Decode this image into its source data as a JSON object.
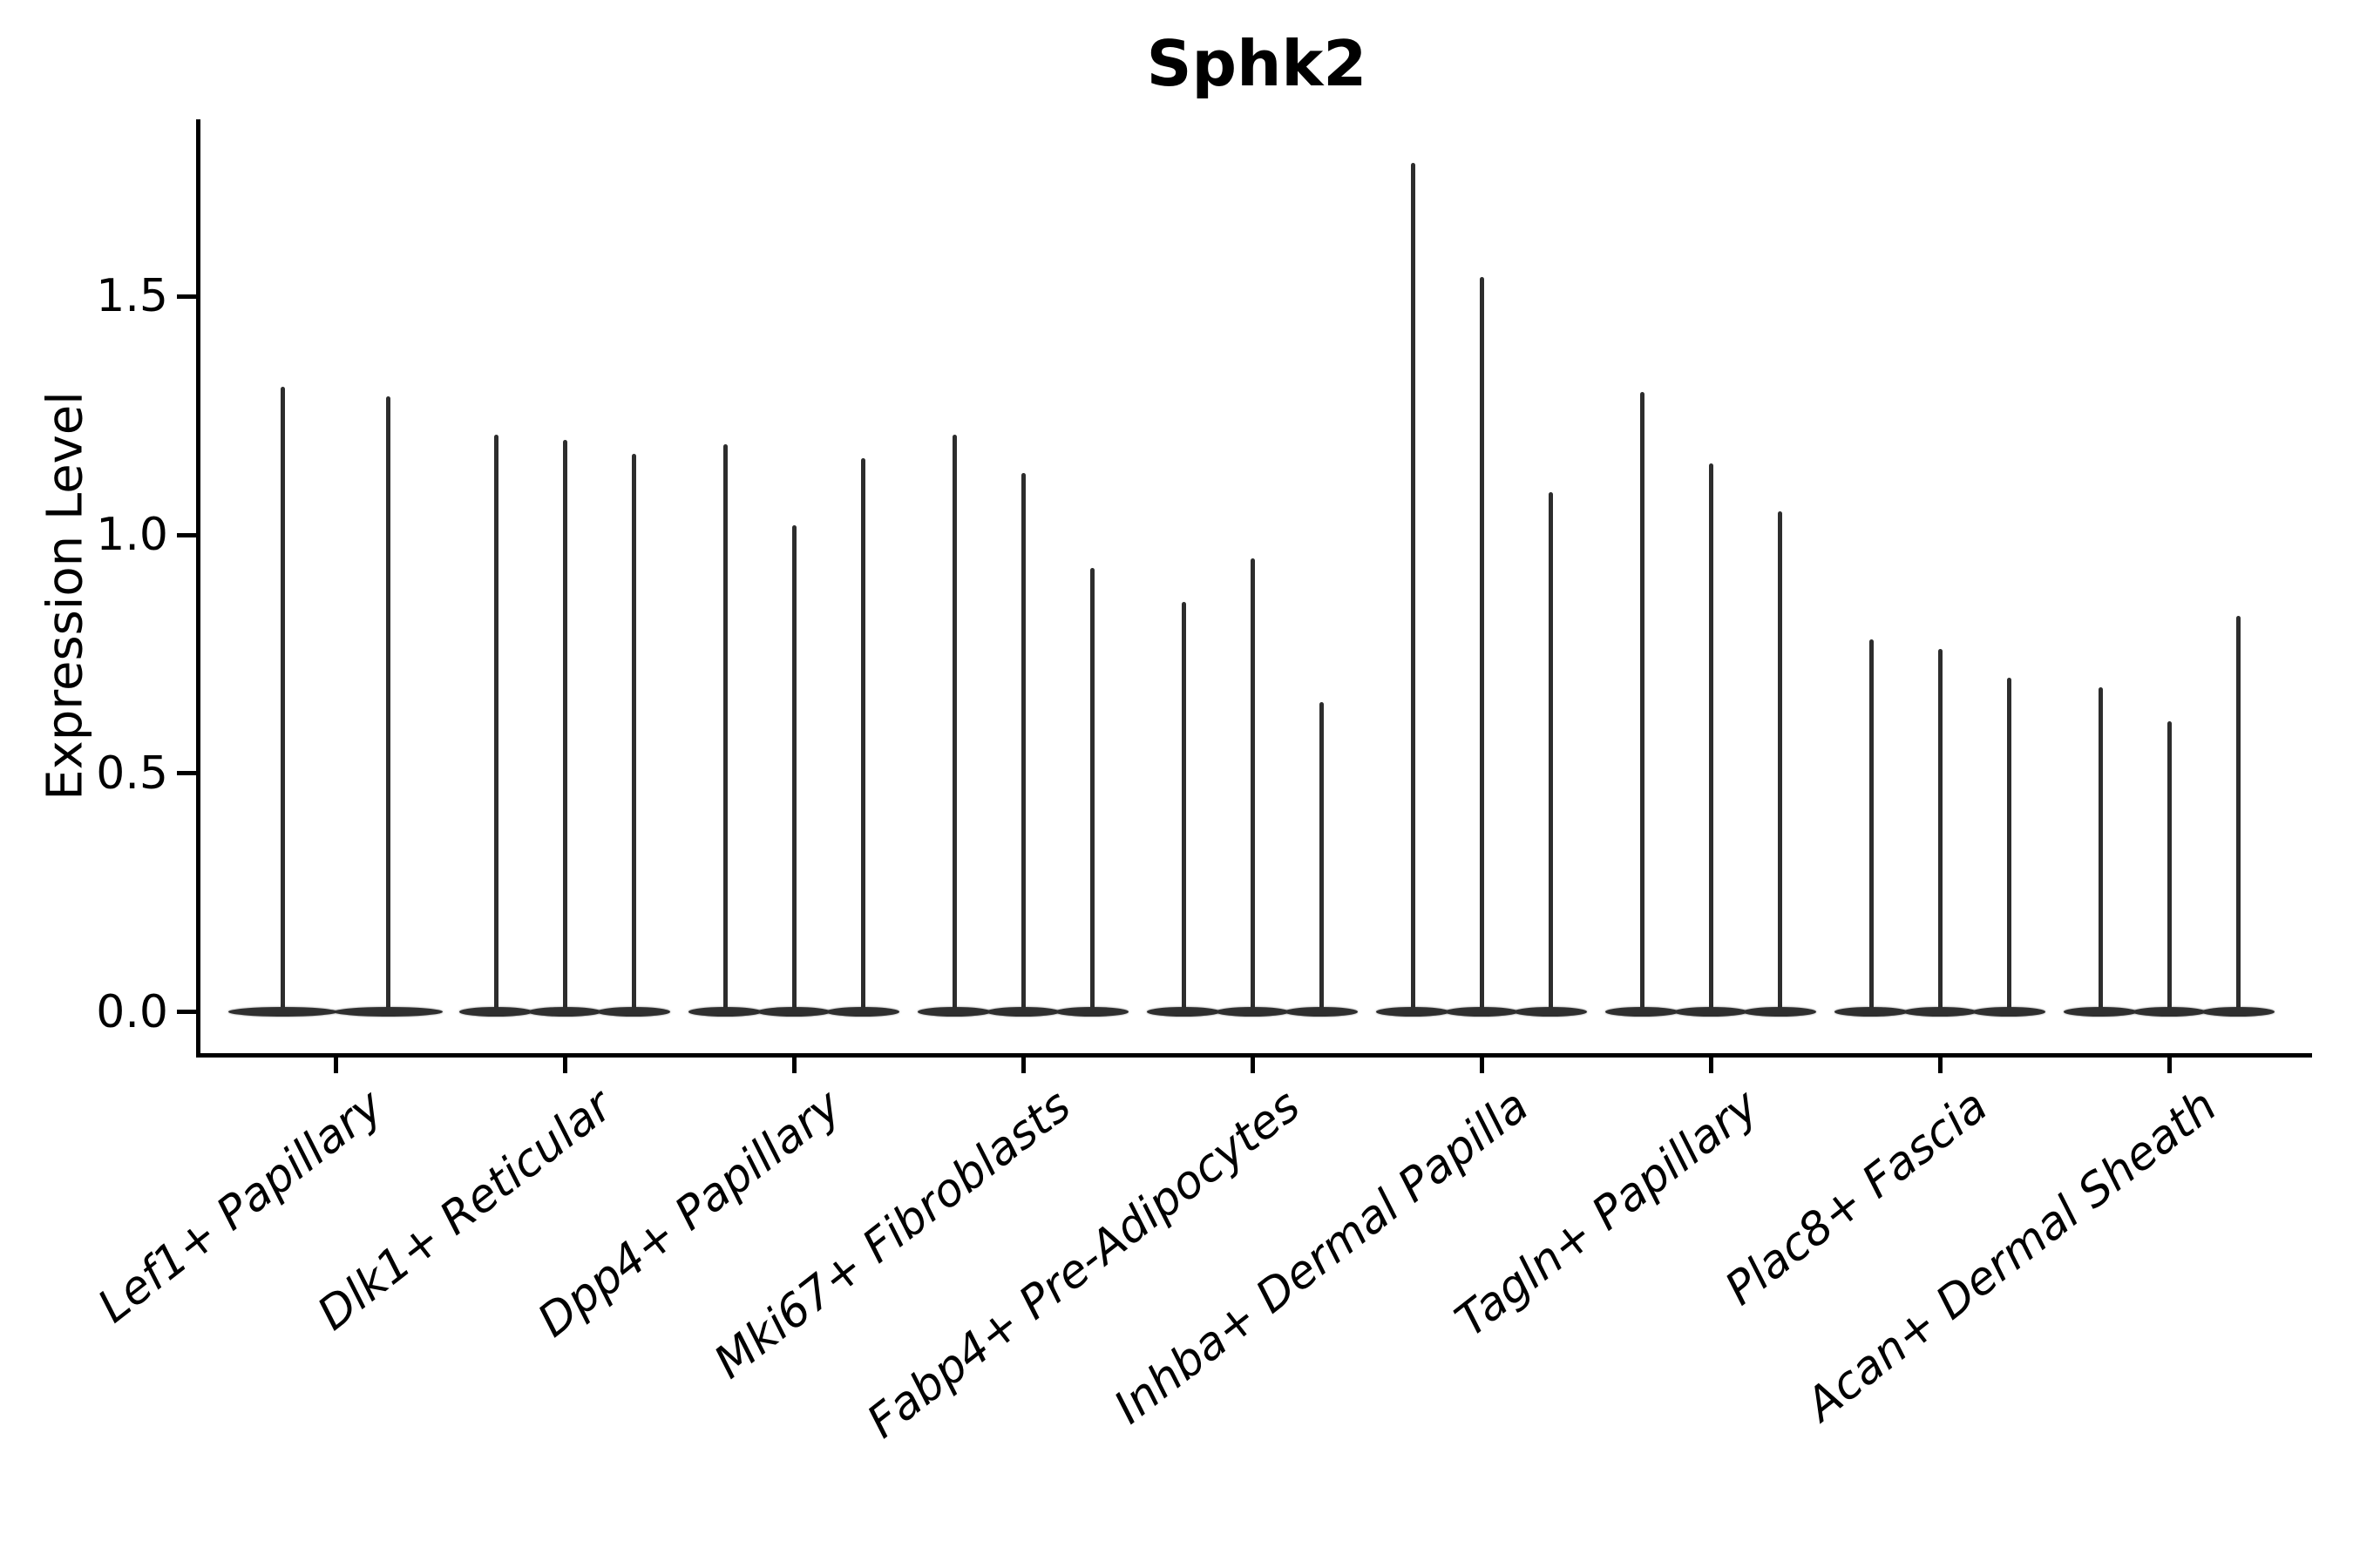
{
  "chart_data": {
    "type": "violin",
    "title": "Sphk2",
    "ylabel": "Expression Level",
    "xlabel": "",
    "yticks": [
      "0.0",
      "0.5",
      "1.0",
      "1.5"
    ],
    "ylim": [
      0,
      1.87
    ],
    "grid": false,
    "legend": "none",
    "background": "#ffffff",
    "colors": {
      "violin": "#2d2d2d",
      "axis": "#000000",
      "text": "#000000"
    },
    "style_note": "needle-shaped violins: wide flat base at 0, thin spike up to max expression",
    "categories": [
      "Lef1+ Papillary",
      "Dlk1+ Reticular",
      "Dpp4+ Papillary",
      "Mki67+ Fibroblasts",
      "Fabp4+ Pre-Adipocytes",
      "Inhba+ Dermal Papilla",
      "Tagln+ Papillary",
      "Plac8+ Fascia",
      "Acan+ Dermal Sheath"
    ],
    "groups": [
      {
        "category": "Lef1+ Papillary",
        "violin_maxima": [
          1.31,
          1.29
        ]
      },
      {
        "category": "Dlk1+ Reticular",
        "violin_maxima": [
          1.21,
          1.2,
          1.17
        ]
      },
      {
        "category": "Dpp4+ Papillary",
        "violin_maxima": [
          1.19,
          1.02,
          1.16
        ]
      },
      {
        "category": "Mki67+ Fibroblasts",
        "violin_maxima": [
          1.21,
          1.13,
          0.93
        ]
      },
      {
        "category": "Fabp4+ Pre-Adipocytes",
        "violin_maxima": [
          0.86,
          0.95,
          0.65
        ]
      },
      {
        "category": "Inhba+ Dermal Papilla",
        "violin_maxima": [
          1.78,
          1.54,
          1.09
        ]
      },
      {
        "category": "Tagln+ Papillary",
        "violin_maxima": [
          1.3,
          1.15,
          1.05
        ]
      },
      {
        "category": "Plac8+ Fascia",
        "violin_maxima": [
          0.78,
          0.76,
          0.7
        ]
      },
      {
        "category": "Acan+ Dermal Sheath",
        "violin_maxima": [
          0.68,
          0.61,
          0.83
        ]
      }
    ]
  }
}
